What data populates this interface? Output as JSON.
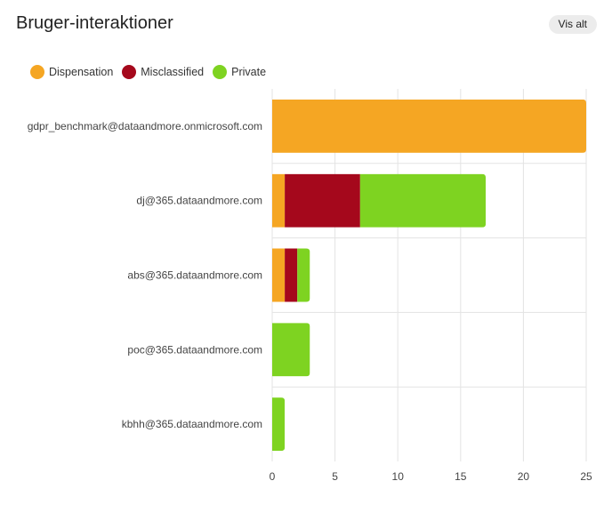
{
  "header": {
    "title": "Bruger-interaktioner",
    "view_all_label": "Vis alt"
  },
  "colors": {
    "Dispensation": "#f5a623",
    "Misclassified": "#a5081c",
    "Private": "#7ed321"
  },
  "chart_data": {
    "type": "bar",
    "orientation": "horizontal",
    "stacked": true,
    "title": "",
    "xlabel": "",
    "ylabel": "",
    "categories": [
      "gdpr_benchmark@dataandmore.onmicrosoft.com",
      "dj@365.dataandmore.com",
      "abs@365.dataandmore.com",
      "poc@365.dataandmore.com",
      "kbhh@365.dataandmore.com"
    ],
    "series": [
      {
        "name": "Dispensation",
        "color": "#f5a623",
        "values": [
          25,
          1,
          1,
          0,
          0
        ]
      },
      {
        "name": "Misclassified",
        "color": "#a5081c",
        "values": [
          0,
          6,
          1,
          0,
          0
        ]
      },
      {
        "name": "Private",
        "color": "#7ed321",
        "values": [
          0,
          10,
          1,
          3,
          1
        ]
      }
    ],
    "xlim": [
      0,
      25
    ],
    "xticks": [
      "0",
      "5",
      "10",
      "15",
      "20",
      "25"
    ],
    "grid": true,
    "legend_position": "top-left"
  }
}
